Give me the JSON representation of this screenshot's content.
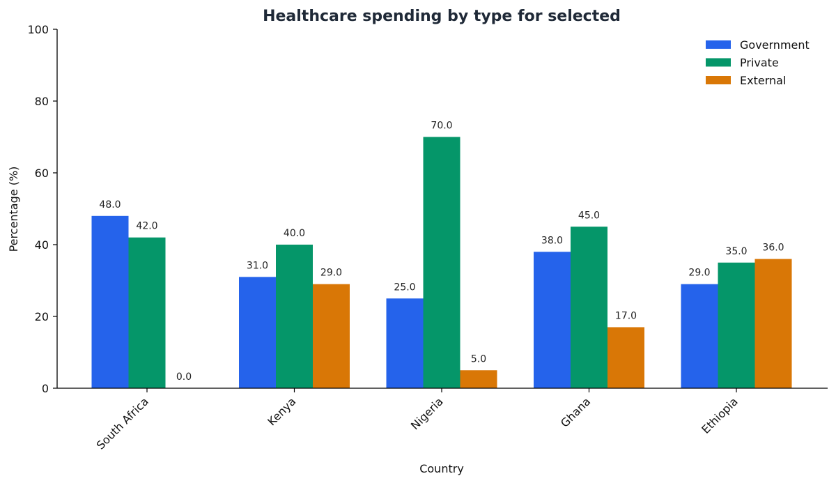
{
  "chart_data": {
    "type": "bar",
    "title": "Healthcare spending by type for selected",
    "xlabel": "Country",
    "ylabel": "Percentage (%)",
    "ylim": [
      0,
      100
    ],
    "yticks": [
      0,
      20,
      40,
      60,
      80,
      100
    ],
    "categories": [
      "South Africa",
      "Kenya",
      "Nigeria",
      "Ghana",
      "Ethiopia"
    ],
    "series": [
      {
        "name": "Government",
        "color": "#2563eb",
        "values": [
          48.0,
          31.0,
          25.0,
          38.0,
          29.0
        ]
      },
      {
        "name": "Private",
        "color": "#059669",
        "values": [
          42.0,
          40.0,
          70.0,
          45.0,
          35.0
        ]
      },
      {
        "name": "External",
        "color": "#d97706",
        "values": [
          0.0,
          29.0,
          5.0,
          17.0,
          36.0
        ]
      }
    ],
    "grid": false,
    "legend_position": "top-right",
    "value_format_decimals": 1
  }
}
